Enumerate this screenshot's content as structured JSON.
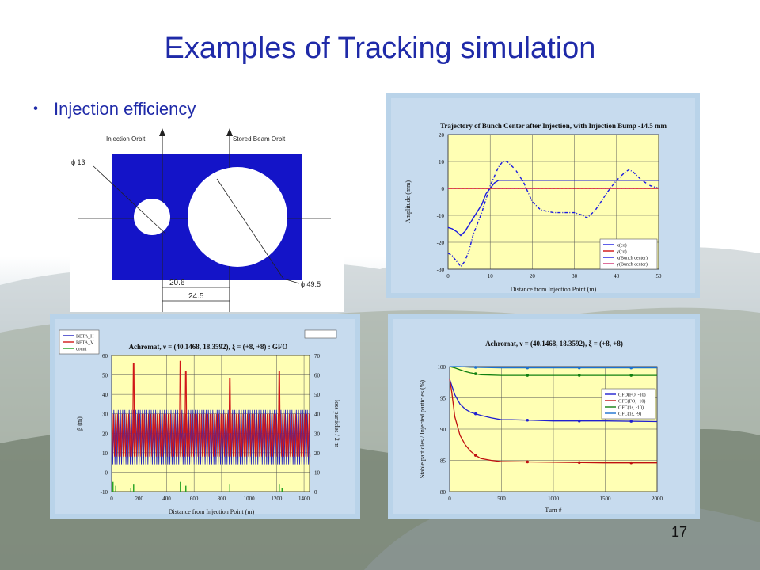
{
  "slide": {
    "title": "Examples of Tracking simulation",
    "bullet": "Injection efficiency",
    "page_number": "17"
  },
  "aperture_diagram": {
    "label_injection_orbit": "Injection Orbit",
    "label_stored_orbit": "Stored Beam Orbit",
    "dim_small": "ϕ 13",
    "dim_large": "ϕ 49.5",
    "dim_20": "20.6",
    "dim_24": "24.5",
    "colors": {
      "block": "#1414c8"
    }
  },
  "chart_data": [
    {
      "type": "line",
      "title": "Trajectory of Bunch Center after Injection, with Injection Bump -14.5 mm",
      "xlabel": "Distance from Injection Point (m)",
      "ylabel": "Amplitude (mm)",
      "xlim": [
        0,
        50
      ],
      "ylim": [
        -30,
        20
      ],
      "xticks": [
        0,
        10,
        20,
        30,
        40,
        50
      ],
      "yticks": [
        -30,
        -20,
        -10,
        0,
        10,
        20
      ],
      "legend": "bottom-right",
      "series": [
        {
          "name": "x(co)",
          "color": "#1a1ae0",
          "x": [
            0,
            1,
            2,
            3,
            4,
            6,
            8,
            9,
            10,
            11,
            12,
            13,
            14,
            15,
            20,
            25,
            30,
            32,
            34,
            36,
            40,
            43,
            45,
            48,
            50
          ],
          "y": [
            -14.5,
            -15,
            -16,
            -17.5,
            -16,
            -11,
            -6,
            -2,
            0,
            2,
            3,
            3,
            3,
            3,
            3,
            3,
            3,
            3,
            3,
            3,
            3,
            3,
            3,
            3,
            3
          ]
        },
        {
          "name": "y(co)",
          "color": "#d01010",
          "x": [
            0,
            50
          ],
          "y": [
            0,
            0
          ]
        },
        {
          "name": "x(Bunch center)",
          "color": "#1a1ae0",
          "x": [
            0,
            1,
            2,
            3,
            4,
            5,
            6,
            8,
            10,
            12,
            13,
            14,
            16,
            18,
            20,
            22,
            25,
            28,
            30,
            32,
            33,
            35,
            38,
            40,
            42,
            43,
            44,
            46,
            48,
            50
          ],
          "y": [
            -24,
            -25,
            -27,
            -29,
            -27,
            -23,
            -17,
            -9,
            1,
            8,
            10,
            10,
            7,
            2,
            -5,
            -8,
            -9,
            -9,
            -9,
            -10,
            -11,
            -8,
            -1,
            3,
            6,
            7,
            6,
            3,
            1,
            0
          ]
        },
        {
          "name": "y(Bunch center)",
          "color": "#d03070",
          "x": [
            0,
            50
          ],
          "y": [
            0,
            0
          ]
        }
      ]
    },
    {
      "type": "line",
      "title": "Achromat, ν = (40.1468, 18.3592), ξ = (+8, +8) : GFO",
      "xlabel": "Distance from Injection Point (m)",
      "ylabel": "β (m)",
      "ylabel_right": "loss particles / 2 m",
      "xlim": [
        0,
        1440
      ],
      "ylim": [
        -10,
        60
      ],
      "ylim_right": [
        0,
        70
      ],
      "xticks": [
        0,
        200,
        400,
        600,
        800,
        1000,
        1200,
        1400
      ],
      "yticks": [
        -10,
        0,
        10,
        20,
        30,
        40,
        50,
        60
      ],
      "yticks_right": [
        0,
        10,
        20,
        30,
        40,
        50,
        60,
        70
      ],
      "legend": "top-left",
      "series": [
        {
          "name": "BETA_H",
          "color": "#2020c0",
          "band": [
            4,
            32
          ],
          "peaks_x": [],
          "peaks_y": []
        },
        {
          "name": "BETA_V",
          "color": "#d01818",
          "band": [
            8,
            30
          ],
          "peaks_x": [
            160,
            500,
            540,
            860,
            1220
          ],
          "peaks_y": [
            56,
            57,
            52,
            48,
            52
          ]
        },
        {
          "name": "count",
          "color": "#20a020",
          "x": [
            10,
            30,
            140,
            160,
            500,
            540,
            860,
            1220,
            1240
          ],
          "y": [
            5,
            3,
            2,
            4,
            5,
            3,
            4,
            4,
            2
          ]
        }
      ]
    },
    {
      "type": "line",
      "title": "Achromat, ν = (40.1468, 18.3592), ξ = (+8, +8)",
      "xlabel": "Turn #",
      "ylabel": "Stable particles / Injected particles (%)",
      "xlim": [
        0,
        2000
      ],
      "ylim": [
        80,
        100
      ],
      "xticks": [
        0,
        500,
        1000,
        1500,
        2000
      ],
      "yticks": [
        80,
        85,
        90,
        95,
        100
      ],
      "legend": "right",
      "series": [
        {
          "name": "GFD(FO, -10)",
          "color": "#2020d0",
          "x": [
            0,
            20,
            50,
            100,
            150,
            200,
            300,
            400,
            500,
            600,
            800,
            1000,
            1500,
            2000
          ],
          "y": [
            98,
            97,
            95.5,
            94,
            93.2,
            92.7,
            92.2,
            91.8,
            91.5,
            91.5,
            91.4,
            91.3,
            91.3,
            91.2
          ]
        },
        {
          "name": "GFC(FO, -10)",
          "color": "#c01010",
          "x": [
            0,
            20,
            50,
            100,
            150,
            200,
            250,
            300,
            400,
            500,
            1000,
            1500,
            2000
          ],
          "y": [
            98,
            96,
            92,
            89,
            87.5,
            86.5,
            85.8,
            85.3,
            85,
            84.8,
            84.7,
            84.6,
            84.6
          ]
        },
        {
          "name": "GFC(1s, -10)",
          "color": "#108010",
          "x": [
            0,
            50,
            100,
            150,
            200,
            300,
            500,
            1000,
            1500,
            2000
          ],
          "y": [
            100,
            99.8,
            99.5,
            99.2,
            99,
            98.7,
            98.6,
            98.6,
            98.6,
            98.6
          ]
        },
        {
          "name": "GFC(1s, -9)",
          "color": "#1a70d0",
          "x": [
            0,
            100,
            200,
            500,
            1000,
            1500,
            2000
          ],
          "y": [
            100,
            100,
            99.9,
            99.8,
            99.8,
            99.8,
            99.8
          ]
        }
      ]
    }
  ]
}
